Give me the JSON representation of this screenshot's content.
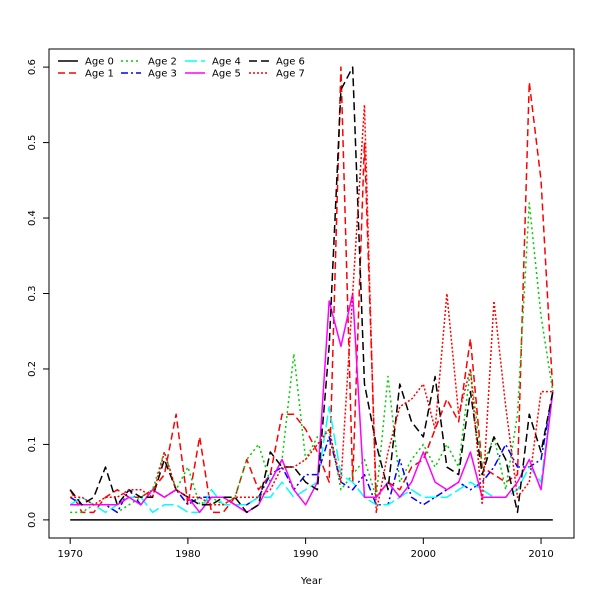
{
  "chart_data": {
    "type": "line",
    "title": "",
    "xlabel": "Year",
    "ylabel": "",
    "xlim": [
      1968.2,
      2012.8
    ],
    "ylim": [
      -0.024,
      0.624
    ],
    "x_ticks": [
      1970,
      1980,
      1990,
      2000,
      2010
    ],
    "y_ticks": [
      0.0,
      0.1,
      0.2,
      0.3,
      0.4,
      0.5,
      0.6
    ],
    "y_tick_labels": [
      "0.0",
      "0.1",
      "0.2",
      "0.3",
      "0.4",
      "0.5",
      "0.6"
    ],
    "grid": false,
    "legend_position": "top-left",
    "x": [
      1970,
      1971,
      1972,
      1973,
      1974,
      1975,
      1976,
      1977,
      1978,
      1979,
      1980,
      1981,
      1982,
      1983,
      1984,
      1985,
      1986,
      1987,
      1988,
      1989,
      1990,
      1991,
      1992,
      1993,
      1994,
      1995,
      1996,
      1997,
      1998,
      1999,
      2000,
      2001,
      2002,
      2003,
      2004,
      2005,
      2006,
      2007,
      2008,
      2009,
      2010,
      2011
    ],
    "series": [
      {
        "name": "Age 0",
        "color": "#000000",
        "dash": "",
        "values": [
          0,
          0,
          0,
          0,
          0,
          0,
          0,
          0,
          0,
          0,
          0,
          0,
          0,
          0,
          0,
          0,
          0,
          0,
          0,
          0,
          0,
          0,
          0,
          0,
          0,
          0,
          0,
          0,
          0,
          0,
          0,
          0,
          0,
          0,
          0,
          0,
          0,
          0,
          0,
          0,
          0,
          0
        ]
      },
      {
        "name": "Age 1",
        "color": "#ff0000",
        "dash": "7,4",
        "values": [
          0.04,
          0.01,
          0.01,
          0.03,
          0.04,
          0.03,
          0.03,
          0.04,
          0.06,
          0.14,
          0.02,
          0.11,
          0.01,
          0.01,
          0.03,
          0.08,
          0.04,
          0.06,
          0.14,
          0.14,
          0.12,
          0.09,
          0.05,
          0.6,
          0.05,
          0.5,
          0.03,
          0.05,
          0.04,
          0.07,
          0.08,
          0.12,
          0.16,
          0.13,
          0.24,
          0.07,
          0.06,
          0.05,
          0.06,
          0.58,
          0.45,
          0.17
        ]
      },
      {
        "name": "Age 2",
        "color": "#00cd00",
        "dash": "2,3",
        "values": [
          0.01,
          0.01,
          0.02,
          0.02,
          0.01,
          0.02,
          0.03,
          0.04,
          0.09,
          0.04,
          0.07,
          0.02,
          0.03,
          0.02,
          0.03,
          0.08,
          0.1,
          0.05,
          0.08,
          0.22,
          0.08,
          0.11,
          0.12,
          0.04,
          0.06,
          0.08,
          0.03,
          0.19,
          0.05,
          0.08,
          0.1,
          0.07,
          0.1,
          0.07,
          0.2,
          0.07,
          0.11,
          0.04,
          0.14,
          0.42,
          0.27,
          0.17
        ]
      },
      {
        "name": "Age 3",
        "color": "#0000ff",
        "dash": "7,3,2,3",
        "values": [
          0.03,
          0.02,
          0.02,
          0.02,
          0.01,
          0.04,
          0.02,
          0.04,
          0.03,
          0.04,
          0.02,
          0.03,
          0.03,
          0.03,
          0.02,
          0.02,
          0.03,
          0.06,
          0.07,
          0.04,
          0.06,
          0.06,
          0.11,
          0.05,
          0.04,
          0.06,
          0.02,
          0.02,
          0.08,
          0.03,
          0.02,
          0.03,
          0.04,
          0.05,
          0.04,
          0.05,
          0.07,
          0.1,
          0.07,
          0.07,
          0.08,
          0.17
        ]
      },
      {
        "name": "Age 4",
        "color": "#00ffff",
        "dash": "12,4",
        "values": [
          0.02,
          0.03,
          0.02,
          0.01,
          0.02,
          0.03,
          0.03,
          0.01,
          0.02,
          0.02,
          0.01,
          0.01,
          0.04,
          0.02,
          0.02,
          0.02,
          0.03,
          0.03,
          0.05,
          0.03,
          0.04,
          0.05,
          0.15,
          0.06,
          0.05,
          0.03,
          0.02,
          0.02,
          0.03,
          0.04,
          0.03,
          0.03,
          0.03,
          0.04,
          0.05,
          0.04,
          0.03,
          0.03,
          0.04,
          0.07,
          0.05,
          0.17
        ]
      },
      {
        "name": "Age 5",
        "color": "#ff00ff",
        "dash": "",
        "values": [
          0.02,
          0.02,
          0.02,
          0.02,
          0.02,
          0.03,
          0.02,
          0.04,
          0.03,
          0.04,
          0.03,
          0.01,
          0.03,
          0.03,
          0.02,
          0.01,
          0.02,
          0.05,
          0.08,
          0.04,
          0.02,
          0.05,
          0.29,
          0.23,
          0.3,
          0.03,
          0.03,
          0.05,
          0.03,
          0.05,
          0.09,
          0.05,
          0.04,
          0.05,
          0.09,
          0.03,
          0.03,
          0.03,
          0.05,
          0.08,
          0.04,
          0.17
        ]
      },
      {
        "name": "Age 6",
        "color": "#000000",
        "dash": "8,4",
        "values": [
          0.04,
          0.02,
          0.03,
          0.07,
          0.02,
          0.04,
          0.03,
          0.03,
          0.08,
          0.04,
          0.03,
          0.02,
          0.02,
          0.03,
          0.03,
          0.01,
          0.02,
          0.09,
          0.07,
          0.07,
          0.05,
          0.04,
          0.23,
          0.57,
          0.6,
          0.18,
          0.1,
          0.04,
          0.18,
          0.13,
          0.11,
          0.19,
          0.07,
          0.06,
          0.17,
          0.06,
          0.11,
          0.08,
          0.01,
          0.14,
          0.09,
          0.17
        ]
      },
      {
        "name": "Age 7",
        "color": "#ff0000",
        "dash": "2,2",
        "values": [
          0.03,
          0.03,
          0.02,
          0.03,
          0.03,
          0.04,
          0.04,
          0.03,
          0.09,
          0.04,
          0.03,
          0.03,
          0.02,
          0.02,
          0.03,
          0.03,
          0.03,
          0.04,
          0.07,
          0.07,
          0.08,
          0.1,
          0.12,
          0.05,
          0.3,
          0.55,
          0.01,
          0.09,
          0.15,
          0.16,
          0.18,
          0.12,
          0.3,
          0.14,
          0.2,
          0.02,
          0.29,
          0.15,
          0.03,
          0.05,
          0.17,
          0.17
        ]
      }
    ]
  }
}
